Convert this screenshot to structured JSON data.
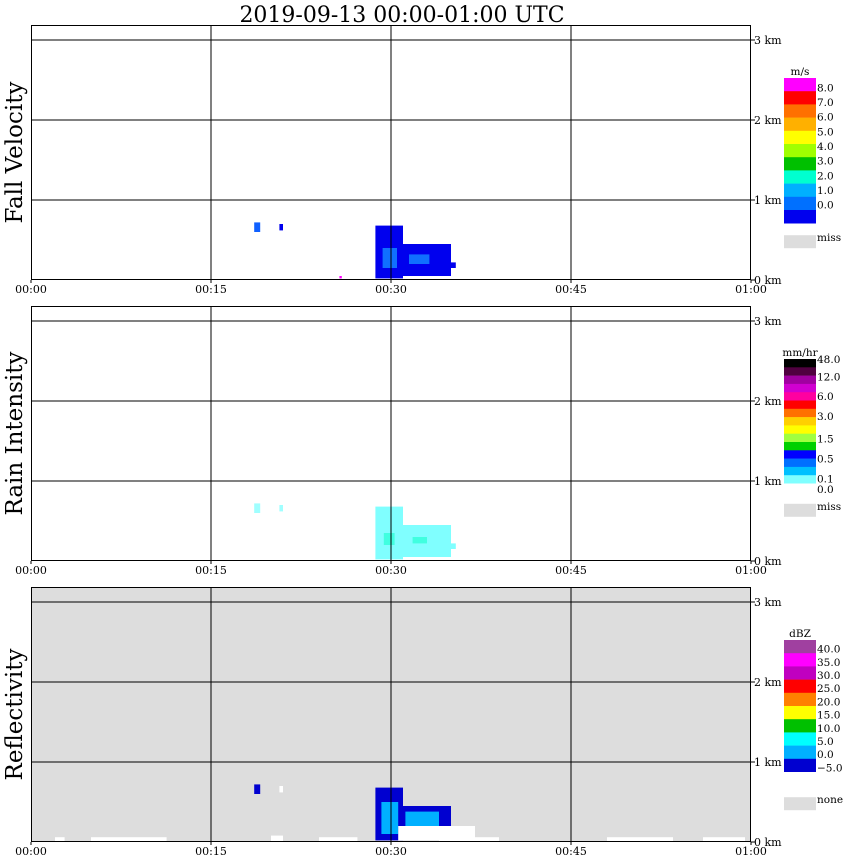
{
  "title": "2019-09-13   00:00-01:00 UTC",
  "chart_data": [
    {
      "type": "heatmap",
      "label": "Fall Velocity",
      "unit": "m/s",
      "background": "#ffffff",
      "x_ticks": [
        "00:00",
        "00:15",
        "00:30",
        "00:45",
        "01:00"
      ],
      "xlim_minutes": [
        0,
        60
      ],
      "y_ticks": [
        "0 km",
        "1 km",
        "2 km",
        "3 km"
      ],
      "ylim_km": [
        0,
        3.2
      ],
      "grid": true,
      "colorbar": {
        "labels": [
          "8.0",
          "7.0",
          "6.0",
          "5.0",
          "4.0",
          "3.0",
          "2.0",
          "1.0",
          "0.0"
        ],
        "colors": [
          "#ff00ff",
          "#ff0000",
          "#ff7000",
          "#ffb000",
          "#ffff00",
          "#a0ff00",
          "#00c000",
          "#00ffd0",
          "#00b0ff",
          "#0070ff",
          "#0000ee"
        ],
        "missing_label": "miss",
        "missing_color": "#dddddd"
      },
      "echoes": [
        {
          "x": [
            18.6,
            19.1
          ],
          "y": [
            0.6,
            0.72
          ],
          "color": "#1060ff"
        },
        {
          "x": [
            20.7,
            21.0
          ],
          "y": [
            0.62,
            0.7
          ],
          "color": "#0000ee"
        },
        {
          "x": [
            28.7,
            31.0
          ],
          "y": [
            0.02,
            0.68
          ],
          "color": "#0000ee"
        },
        {
          "x": [
            31.0,
            35.0
          ],
          "y": [
            0.05,
            0.45
          ],
          "color": "#0000ee"
        },
        {
          "x": [
            35.0,
            35.4
          ],
          "y": [
            0.15,
            0.22
          ],
          "color": "#0000ee"
        },
        {
          "x": [
            29.3,
            30.5
          ],
          "y": [
            0.15,
            0.4
          ],
          "color": "#1070ff"
        },
        {
          "x": [
            31.5,
            33.2
          ],
          "y": [
            0.2,
            0.32
          ],
          "color": "#1070ff"
        },
        {
          "x": [
            25.7,
            25.9
          ],
          "y": [
            0.02,
            0.05
          ],
          "color": "#ff00ff"
        }
      ]
    },
    {
      "type": "heatmap",
      "label": "Rain Intensity",
      "unit": "mm/hr",
      "background": "#ffffff",
      "x_ticks": [
        "00:00",
        "00:15",
        "00:30",
        "00:45",
        "01:00"
      ],
      "xlim_minutes": [
        0,
        60
      ],
      "y_ticks": [
        "0 km",
        "1 km",
        "2 km",
        "3 km"
      ],
      "ylim_km": [
        0,
        3.2
      ],
      "grid": true,
      "colorbar": {
        "labels": [
          "48.0",
          "12.0",
          "6.0",
          "3.0",
          "1.5",
          "0.5",
          "0.1",
          "0.0"
        ],
        "colors": [
          "#000000",
          "#500040",
          "#a000a0",
          "#d000d0",
          "#ff00a0",
          "#ff0000",
          "#ff7000",
          "#ffd000",
          "#ffff00",
          "#a0ff40",
          "#00d000",
          "#0000ff",
          "#0070ff",
          "#00c0ff",
          "#80ffff",
          "#ffffff"
        ],
        "missing_label": "miss",
        "missing_color": "#dddddd"
      },
      "echoes": [
        {
          "x": [
            18.6,
            19.1
          ],
          "y": [
            0.6,
            0.72
          ],
          "color": "#a0ffff"
        },
        {
          "x": [
            20.7,
            21.0
          ],
          "y": [
            0.62,
            0.7
          ],
          "color": "#a0ffff"
        },
        {
          "x": [
            28.7,
            31.0
          ],
          "y": [
            0.02,
            0.68
          ],
          "color": "#80ffff"
        },
        {
          "x": [
            31.0,
            35.0
          ],
          "y": [
            0.05,
            0.45
          ],
          "color": "#80ffff"
        },
        {
          "x": [
            35.0,
            35.4
          ],
          "y": [
            0.15,
            0.22
          ],
          "color": "#80ffff"
        },
        {
          "x": [
            29.4,
            30.3
          ],
          "y": [
            0.2,
            0.35
          ],
          "color": "#40ffe0"
        },
        {
          "x": [
            31.8,
            33.0
          ],
          "y": [
            0.22,
            0.3
          ],
          "color": "#40ffe0"
        }
      ]
    },
    {
      "type": "heatmap",
      "label": "Reflectivity",
      "unit": "dBZ",
      "background": "#dddddd",
      "x_ticks": [
        "00:00",
        "00:15",
        "00:30",
        "00:45",
        "01:00"
      ],
      "xlim_minutes": [
        0,
        60
      ],
      "y_ticks": [
        "0 km",
        "1 km",
        "2 km",
        "3 km"
      ],
      "ylim_km": [
        0,
        3.2
      ],
      "grid": true,
      "colorbar": {
        "labels": [
          "40.0",
          "35.0",
          "30.0",
          "25.0",
          "20.0",
          "15.0",
          "10.0",
          "5.0",
          "0.0",
          "−5.0"
        ],
        "colors": [
          "#a040a0",
          "#ff00ff",
          "#c000c0",
          "#ff0000",
          "#ff8000",
          "#ffff00",
          "#00c000",
          "#00ffff",
          "#00b0ff",
          "#0000d0",
          "#ffffff"
        ],
        "missing_label": "none",
        "missing_color": "#dddddd"
      },
      "echoes": [
        {
          "x": [
            18.6,
            19.1
          ],
          "y": [
            0.6,
            0.72
          ],
          "color": "#0000d0"
        },
        {
          "x": [
            20.7,
            21.0
          ],
          "y": [
            0.62,
            0.7
          ],
          "color": "#ffffff"
        },
        {
          "x": [
            28.7,
            31.0
          ],
          "y": [
            0.02,
            0.68
          ],
          "color": "#0000d0"
        },
        {
          "x": [
            31.0,
            35.0
          ],
          "y": [
            0.05,
            0.45
          ],
          "color": "#0000d0"
        },
        {
          "x": [
            29.2,
            30.6
          ],
          "y": [
            0.1,
            0.5
          ],
          "color": "#00b0ff"
        },
        {
          "x": [
            31.2,
            34.0
          ],
          "y": [
            0.12,
            0.38
          ],
          "color": "#00b0ff"
        },
        {
          "x": [
            30.6,
            37.0
          ],
          "y": [
            0.02,
            0.2
          ],
          "color": "#ffffff"
        },
        {
          "x": [
            2.0,
            2.8
          ],
          "y": [
            0.0,
            0.06
          ],
          "color": "#ffffff"
        },
        {
          "x": [
            5.0,
            11.3
          ],
          "y": [
            0.0,
            0.06
          ],
          "color": "#ffffff"
        },
        {
          "x": [
            20.0,
            21.0
          ],
          "y": [
            0.0,
            0.08
          ],
          "color": "#ffffff"
        },
        {
          "x": [
            24.0,
            27.2
          ],
          "y": [
            0.0,
            0.06
          ],
          "color": "#ffffff"
        },
        {
          "x": [
            34.0,
            39.0
          ],
          "y": [
            0.0,
            0.06
          ],
          "color": "#ffffff"
        },
        {
          "x": [
            48.0,
            53.5
          ],
          "y": [
            0.0,
            0.06
          ],
          "color": "#ffffff"
        },
        {
          "x": [
            56.0,
            59.5
          ],
          "y": [
            0.0,
            0.06
          ],
          "color": "#ffffff"
        }
      ]
    }
  ]
}
